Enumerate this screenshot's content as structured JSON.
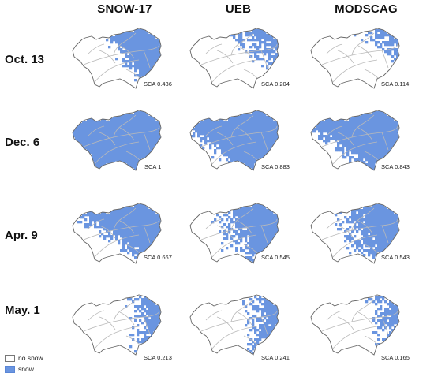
{
  "columns": [
    "SNOW-17",
    "UEB",
    "MODSCAG"
  ],
  "rows": [
    {
      "date": "Oct. 13",
      "panels": [
        {
          "model": "SNOW-17",
          "sca_label": "SCA 0.436",
          "snow_fraction": 0.436,
          "snow_region": "east"
        },
        {
          "model": "UEB",
          "sca_label": "SCA 0.204",
          "snow_fraction": 0.204,
          "snow_region": "northeast-scattered"
        },
        {
          "model": "MODSCAG",
          "sca_label": "SCA 0.114",
          "snow_fraction": 0.114,
          "snow_region": "northeast-rim"
        }
      ]
    },
    {
      "date": "Dec. 6",
      "panels": [
        {
          "model": "SNOW-17",
          "sca_label": "SCA 1",
          "snow_fraction": 1,
          "snow_region": "all"
        },
        {
          "model": "UEB",
          "sca_label": "SCA 0.883",
          "snow_fraction": 0.883,
          "snow_region": "most-except-southwest"
        },
        {
          "model": "MODSCAG",
          "sca_label": "SCA 0.843",
          "snow_fraction": 0.843,
          "snow_region": "most-except-southwest"
        }
      ]
    },
    {
      "date": "Apr. 9",
      "panels": [
        {
          "model": "SNOW-17",
          "sca_label": "SCA 0.667",
          "snow_fraction": 0.667,
          "snow_region": "north-east-center"
        },
        {
          "model": "UEB",
          "sca_label": "SCA 0.545",
          "snow_fraction": 0.545,
          "snow_region": "east-scattered"
        },
        {
          "model": "MODSCAG",
          "sca_label": "SCA 0.543",
          "snow_fraction": 0.543,
          "snow_region": "east-scattered"
        }
      ]
    },
    {
      "date": "May. 1",
      "panels": [
        {
          "model": "SNOW-17",
          "sca_label": "SCA 0.213",
          "snow_fraction": 0.213,
          "snow_region": "east-rim"
        },
        {
          "model": "UEB",
          "sca_label": "SCA 0.241",
          "snow_fraction": 0.241,
          "snow_region": "east-rim"
        },
        {
          "model": "MODSCAG",
          "sca_label": "SCA 0.165",
          "snow_fraction": 0.165,
          "snow_region": "east-rim"
        }
      ]
    }
  ],
  "legend": {
    "no_snow": "no snow",
    "snow": "snow"
  },
  "colors": {
    "snow": "#6a95e0",
    "snow_edge": "#4f7fd2",
    "no_snow": "#ffffff",
    "outline": "#666666",
    "rivers": "#b9b9b9"
  }
}
